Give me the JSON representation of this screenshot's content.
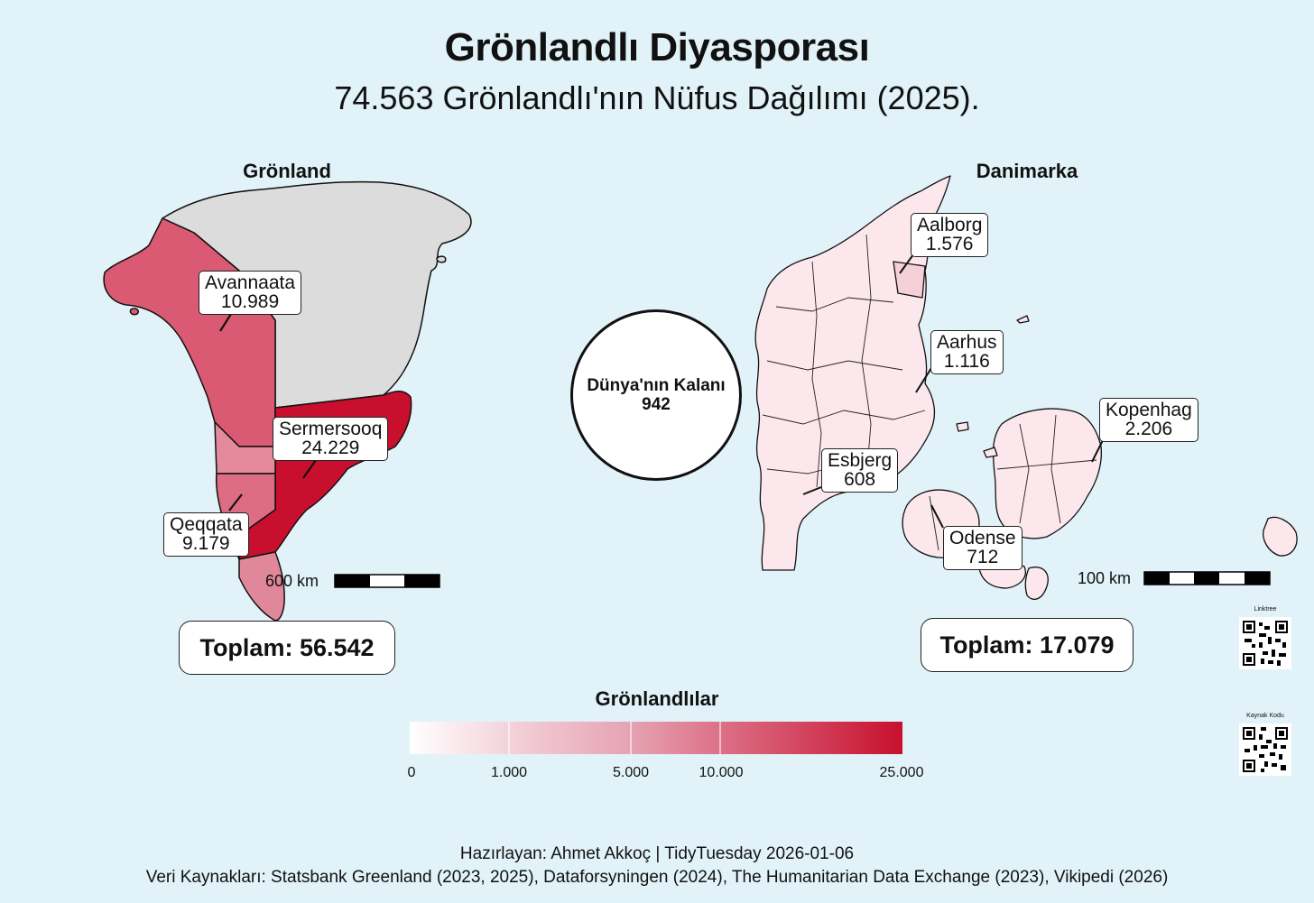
{
  "title": "Grönlandlı Diyasporası",
  "subtitle": "74.563 Grönlandlı'nın Nüfus Dağılımı (2025).",
  "greenland": {
    "title": "Grönland",
    "regions": [
      {
        "name": "Avannaata",
        "value": "10.989"
      },
      {
        "name": "Sermersooq",
        "value": "24.229"
      },
      {
        "name": "Qeqqata",
        "value": "9.179"
      }
    ],
    "scale_label": "600 km",
    "total": "Toplam: 56.542"
  },
  "denmark": {
    "title": "Danimarka",
    "cities": [
      {
        "name": "Aalborg",
        "value": "1.576"
      },
      {
        "name": "Aarhus",
        "value": "1.116"
      },
      {
        "name": "Kopenhag",
        "value": "2.206"
      },
      {
        "name": "Esbjerg",
        "value": "608"
      },
      {
        "name": "Odense",
        "value": "712"
      }
    ],
    "scale_label": "100 km",
    "total": "Toplam: 17.079"
  },
  "world": {
    "label": "Dünya'nın Kalanı",
    "value": "942"
  },
  "legend": {
    "title": "Grönlandlılar",
    "ticks": [
      "0",
      "1.000",
      "5.000",
      "10.000",
      "25.000"
    ],
    "color_low": "#ffffff",
    "color_high": "#c8102e"
  },
  "qr": {
    "linktree": "Linktree",
    "source": "Kaynak Kodu"
  },
  "footer": {
    "credit": "Hazırlayan: Ahmet Akkoç | TidyTuesday 2026-01-06",
    "sources": "Veri Kaynakları: Statsbank Greenland (2023, 2025), Dataforsyningen (2024), The Humanitarian Data Exchange (2023), Vikipedi (2026)"
  },
  "colors": {
    "background": "#e1f3f8",
    "ice": "#dcdcdc",
    "avannaata": "#d95a72",
    "sermersooq": "#c8102e",
    "qeqqata": "#e48a9c",
    "kujalleq": "#e1879a",
    "dk_fill": "#fbe7ec"
  }
}
